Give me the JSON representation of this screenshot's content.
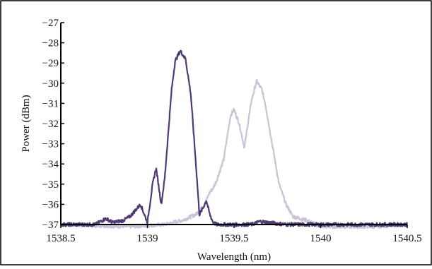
{
  "chart_data": {
    "type": "line",
    "title": "",
    "xlabel": "Wavelength (nm)",
    "ylabel": "Power (dBm)",
    "xlim": [
      1538.5,
      1540.5
    ],
    "ylim": [
      -37,
      -27
    ],
    "xticks": [
      1538.5,
      1539,
      1539.5,
      1540,
      1540.5
    ],
    "xtick_labels": [
      "1538.5",
      "1539",
      "1539.5",
      "1540",
      "1540.5"
    ],
    "yticks": [
      -27,
      -28,
      -29,
      -30,
      -31,
      -32,
      -33,
      -34,
      -35,
      -36,
      -37
    ],
    "ytick_labels": [
      "−27",
      "−28",
      "−29",
      "−30",
      "−31",
      "−32",
      "−33",
      "−34",
      "−35",
      "−36",
      "−37"
    ],
    "grid": false,
    "legend": "none",
    "series": [
      {
        "color": "#c9c3d6",
        "x": [
          1538.5,
          1538.9,
          1539.1,
          1539.2,
          1539.28,
          1539.33,
          1539.36,
          1539.38,
          1539.4,
          1539.44,
          1539.48,
          1539.5,
          1539.53,
          1539.56,
          1539.58,
          1539.6,
          1539.63,
          1539.66,
          1539.68,
          1539.7,
          1539.73,
          1539.76,
          1539.8,
          1539.84,
          1539.88,
          1539.92,
          1540.0,
          1540.1,
          1540.3,
          1540.5
        ],
        "y": [
          -37.0,
          -37.1,
          -37.0,
          -36.8,
          -36.5,
          -36.0,
          -35.4,
          -35.2,
          -34.8,
          -33.8,
          -31.6,
          -31.3,
          -32.0,
          -33.2,
          -32.0,
          -30.9,
          -29.9,
          -30.3,
          -31.0,
          -32.0,
          -33.5,
          -35.0,
          -36.0,
          -36.6,
          -36.7,
          -36.8,
          -37.1,
          -37.1,
          -37.1,
          -37.0
        ]
      },
      {
        "color": "#4f3a75",
        "x": [
          1538.5,
          1538.7,
          1538.76,
          1538.8,
          1538.86,
          1538.9,
          1538.96,
          1539.0,
          1539.03,
          1539.05,
          1539.08,
          1539.1,
          1539.12,
          1539.14,
          1539.16,
          1539.19,
          1539.22,
          1539.25,
          1539.28,
          1539.3,
          1539.32,
          1539.34,
          1539.36,
          1539.38,
          1539.4,
          1539.5,
          1539.6,
          1539.65,
          1539.8,
          1540.0,
          1540.2,
          1540.5
        ],
        "y": [
          -37.0,
          -37.0,
          -36.7,
          -36.9,
          -36.8,
          -36.6,
          -36.0,
          -36.9,
          -35.0,
          -34.2,
          -36.0,
          -34.7,
          -32.5,
          -30.3,
          -28.9,
          -28.4,
          -28.8,
          -30.5,
          -34.0,
          -36.5,
          -36.2,
          -35.8,
          -36.5,
          -36.9,
          -37.0,
          -37.0,
          -37.0,
          -36.85,
          -37.0,
          -37.0,
          -37.0,
          -37.0
        ]
      }
    ]
  }
}
